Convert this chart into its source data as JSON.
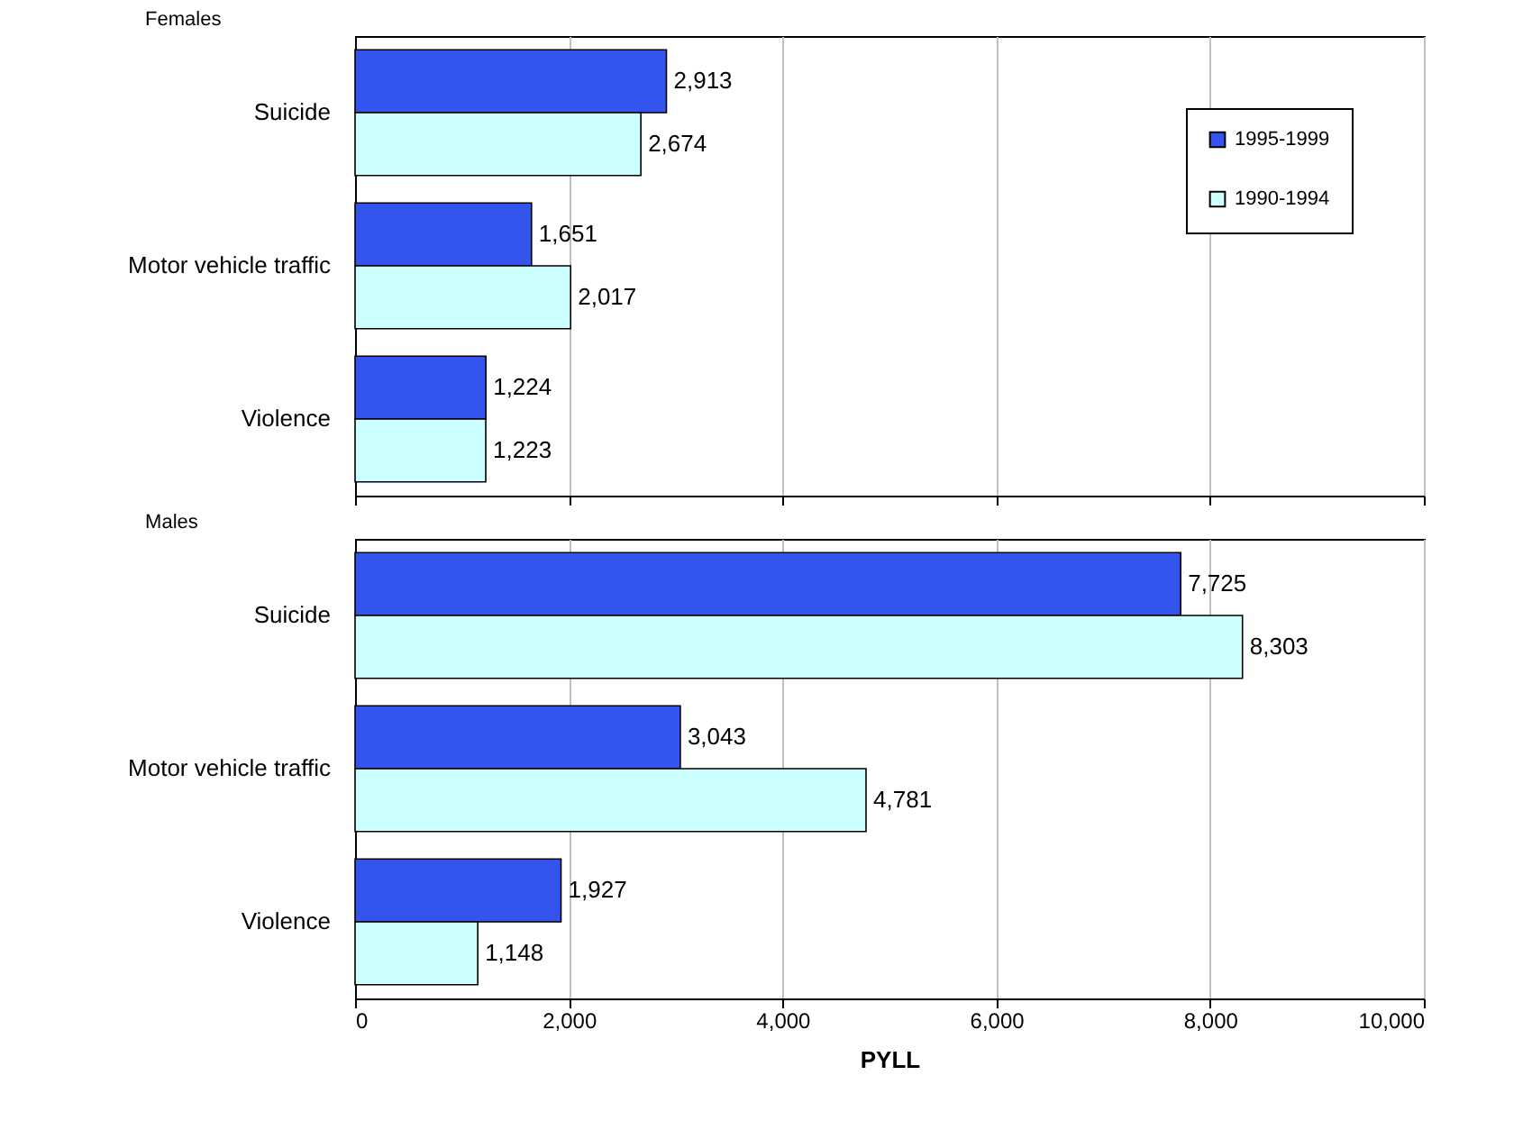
{
  "chart_data": [
    {
      "type": "bar",
      "orientation": "horizontal",
      "title": "Females",
      "categories": [
        "Suicide",
        "Motor vehicle traffic",
        "Violence"
      ],
      "series": [
        {
          "name": "1995-1999",
          "color": "#3355ee",
          "values": [
            2913,
            1651,
            1224
          ],
          "value_labels": [
            "2,913",
            "1,651",
            "1,224"
          ]
        },
        {
          "name": "1990-1994",
          "color": "#ccffff",
          "values": [
            2674,
            2017,
            1223
          ],
          "value_labels": [
            "2,674",
            "2,017",
            "1,223"
          ]
        }
      ],
      "xlim": [
        0,
        10000
      ],
      "xticks": [
        0,
        2000,
        4000,
        6000,
        8000,
        10000
      ],
      "grid": "x",
      "legend": "top right",
      "tick_labels": "y"
    },
    {
      "type": "bar",
      "orientation": "horizontal",
      "title": "Males",
      "xlabel": "PYLL",
      "categories": [
        "Suicide",
        "Motor vehicle traffic",
        "Violence"
      ],
      "series": [
        {
          "color": "#3355ee",
          "values": [
            7725,
            3043,
            1927
          ],
          "value_labels": [
            "7,725",
            "3,043",
            "1,927"
          ]
        },
        {
          "color": "#ccffff",
          "values": [
            8303,
            4781,
            1148
          ],
          "value_labels": [
            "8,303",
            "4,781",
            "1,148"
          ]
        }
      ],
      "xlim": [
        0,
        10000
      ],
      "xticks": [
        0,
        {
          "value": 2000,
          "label": "2,000"
        },
        {
          "value": 4000,
          "label": "4,000"
        },
        {
          "value": 6000,
          "label": "6,000"
        },
        {
          "value": 8000,
          "label": "8,000"
        },
        {
          "value": 10000,
          "label": "10,000"
        }
      ],
      "grid": "x"
    }
  ]
}
